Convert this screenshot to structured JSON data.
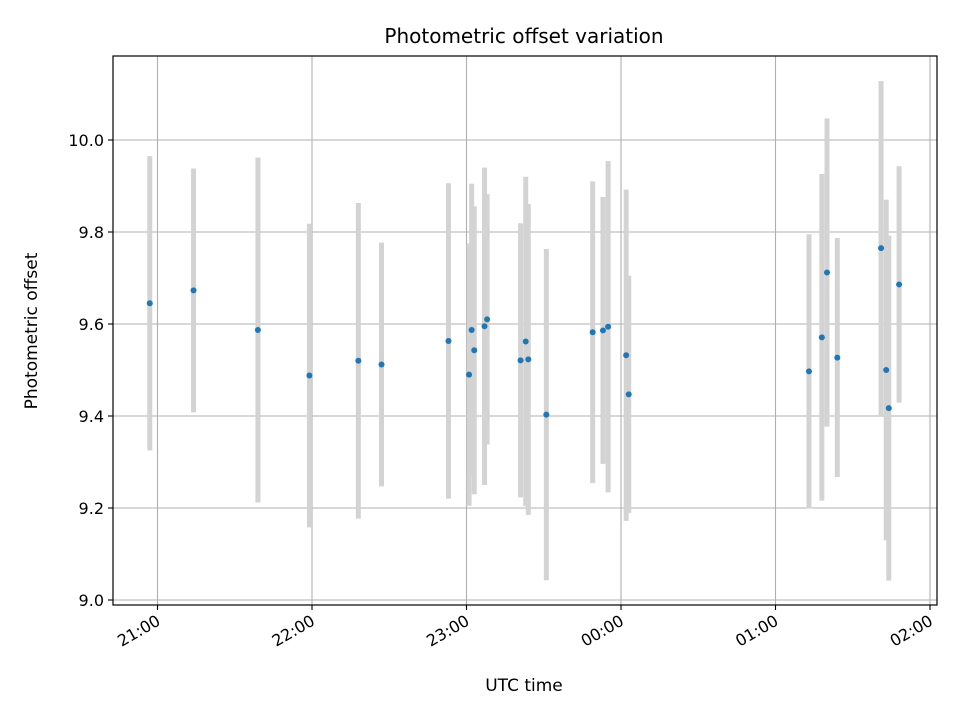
{
  "chart_data": {
    "type": "scatter",
    "title": "Photometric offset variation",
    "xlabel": "UTC time",
    "ylabel": "Photometric offset",
    "grid": true,
    "x_unit": "UTC time of day (minutes since 21:00 shown as HH:MM on axis)",
    "x_ticks": [
      "21:00",
      "22:00",
      "23:00",
      "00:00",
      "01:00",
      "02:00"
    ],
    "y_ticks": [
      "9.0",
      "9.2",
      "9.4",
      "9.6",
      "9.8",
      "10.0"
    ],
    "ylim": [
      8.99,
      10.18
    ],
    "marker_color": "#1f77b4",
    "errorbar_color": "#d3d3d3",
    "points": [
      {
        "x": "20:57",
        "y": 9.645,
        "err": 0.32
      },
      {
        "x": "21:14",
        "y": 9.673,
        "err": 0.265
      },
      {
        "x": "21:39",
        "y": 9.587,
        "err": 0.375
      },
      {
        "x": "21:59",
        "y": 9.488,
        "err": 0.33
      },
      {
        "x": "22:18",
        "y": 9.52,
        "err": 0.343
      },
      {
        "x": "22:27",
        "y": 9.512,
        "err": 0.265
      },
      {
        "x": "22:53",
        "y": 9.563,
        "err": 0.343
      },
      {
        "x": "23:01",
        "y": 9.49,
        "err": 0.285
      },
      {
        "x": "23:02",
        "y": 9.587,
        "err": 0.318
      },
      {
        "x": "23:03",
        "y": 9.543,
        "err": 0.313
      },
      {
        "x": "23:07",
        "y": 9.595,
        "err": 0.345
      },
      {
        "x": "23:08",
        "y": 9.61,
        "err": 0.272
      },
      {
        "x": "23:21",
        "y": 9.521,
        "err": 0.298
      },
      {
        "x": "23:23",
        "y": 9.562,
        "err": 0.358
      },
      {
        "x": "23:24",
        "y": 9.523,
        "err": 0.338
      },
      {
        "x": "23:31",
        "y": 9.403,
        "err": 0.36
      },
      {
        "x": "23:49",
        "y": 9.582,
        "err": 0.328
      },
      {
        "x": "23:53",
        "y": 9.586,
        "err": 0.29
      },
      {
        "x": "23:55",
        "y": 9.594,
        "err": 0.36
      },
      {
        "x": "00:02",
        "y": 9.532,
        "err": 0.36
      },
      {
        "x": "00:03",
        "y": 9.447,
        "err": 0.258
      },
      {
        "x": "01:13",
        "y": 9.497,
        "err": 0.298
      },
      {
        "x": "01:18",
        "y": 9.571,
        "err": 0.355
      },
      {
        "x": "01:20",
        "y": 9.712,
        "err": 0.335
      },
      {
        "x": "01:24",
        "y": 9.527,
        "err": 0.26
      },
      {
        "x": "01:41",
        "y": 9.765,
        "err": 0.363
      },
      {
        "x": "01:43",
        "y": 9.5,
        "err": 0.37
      },
      {
        "x": "01:44",
        "y": 9.417,
        "err": 0.375
      },
      {
        "x": "01:48",
        "y": 9.686,
        "err": 0.257
      }
    ]
  }
}
